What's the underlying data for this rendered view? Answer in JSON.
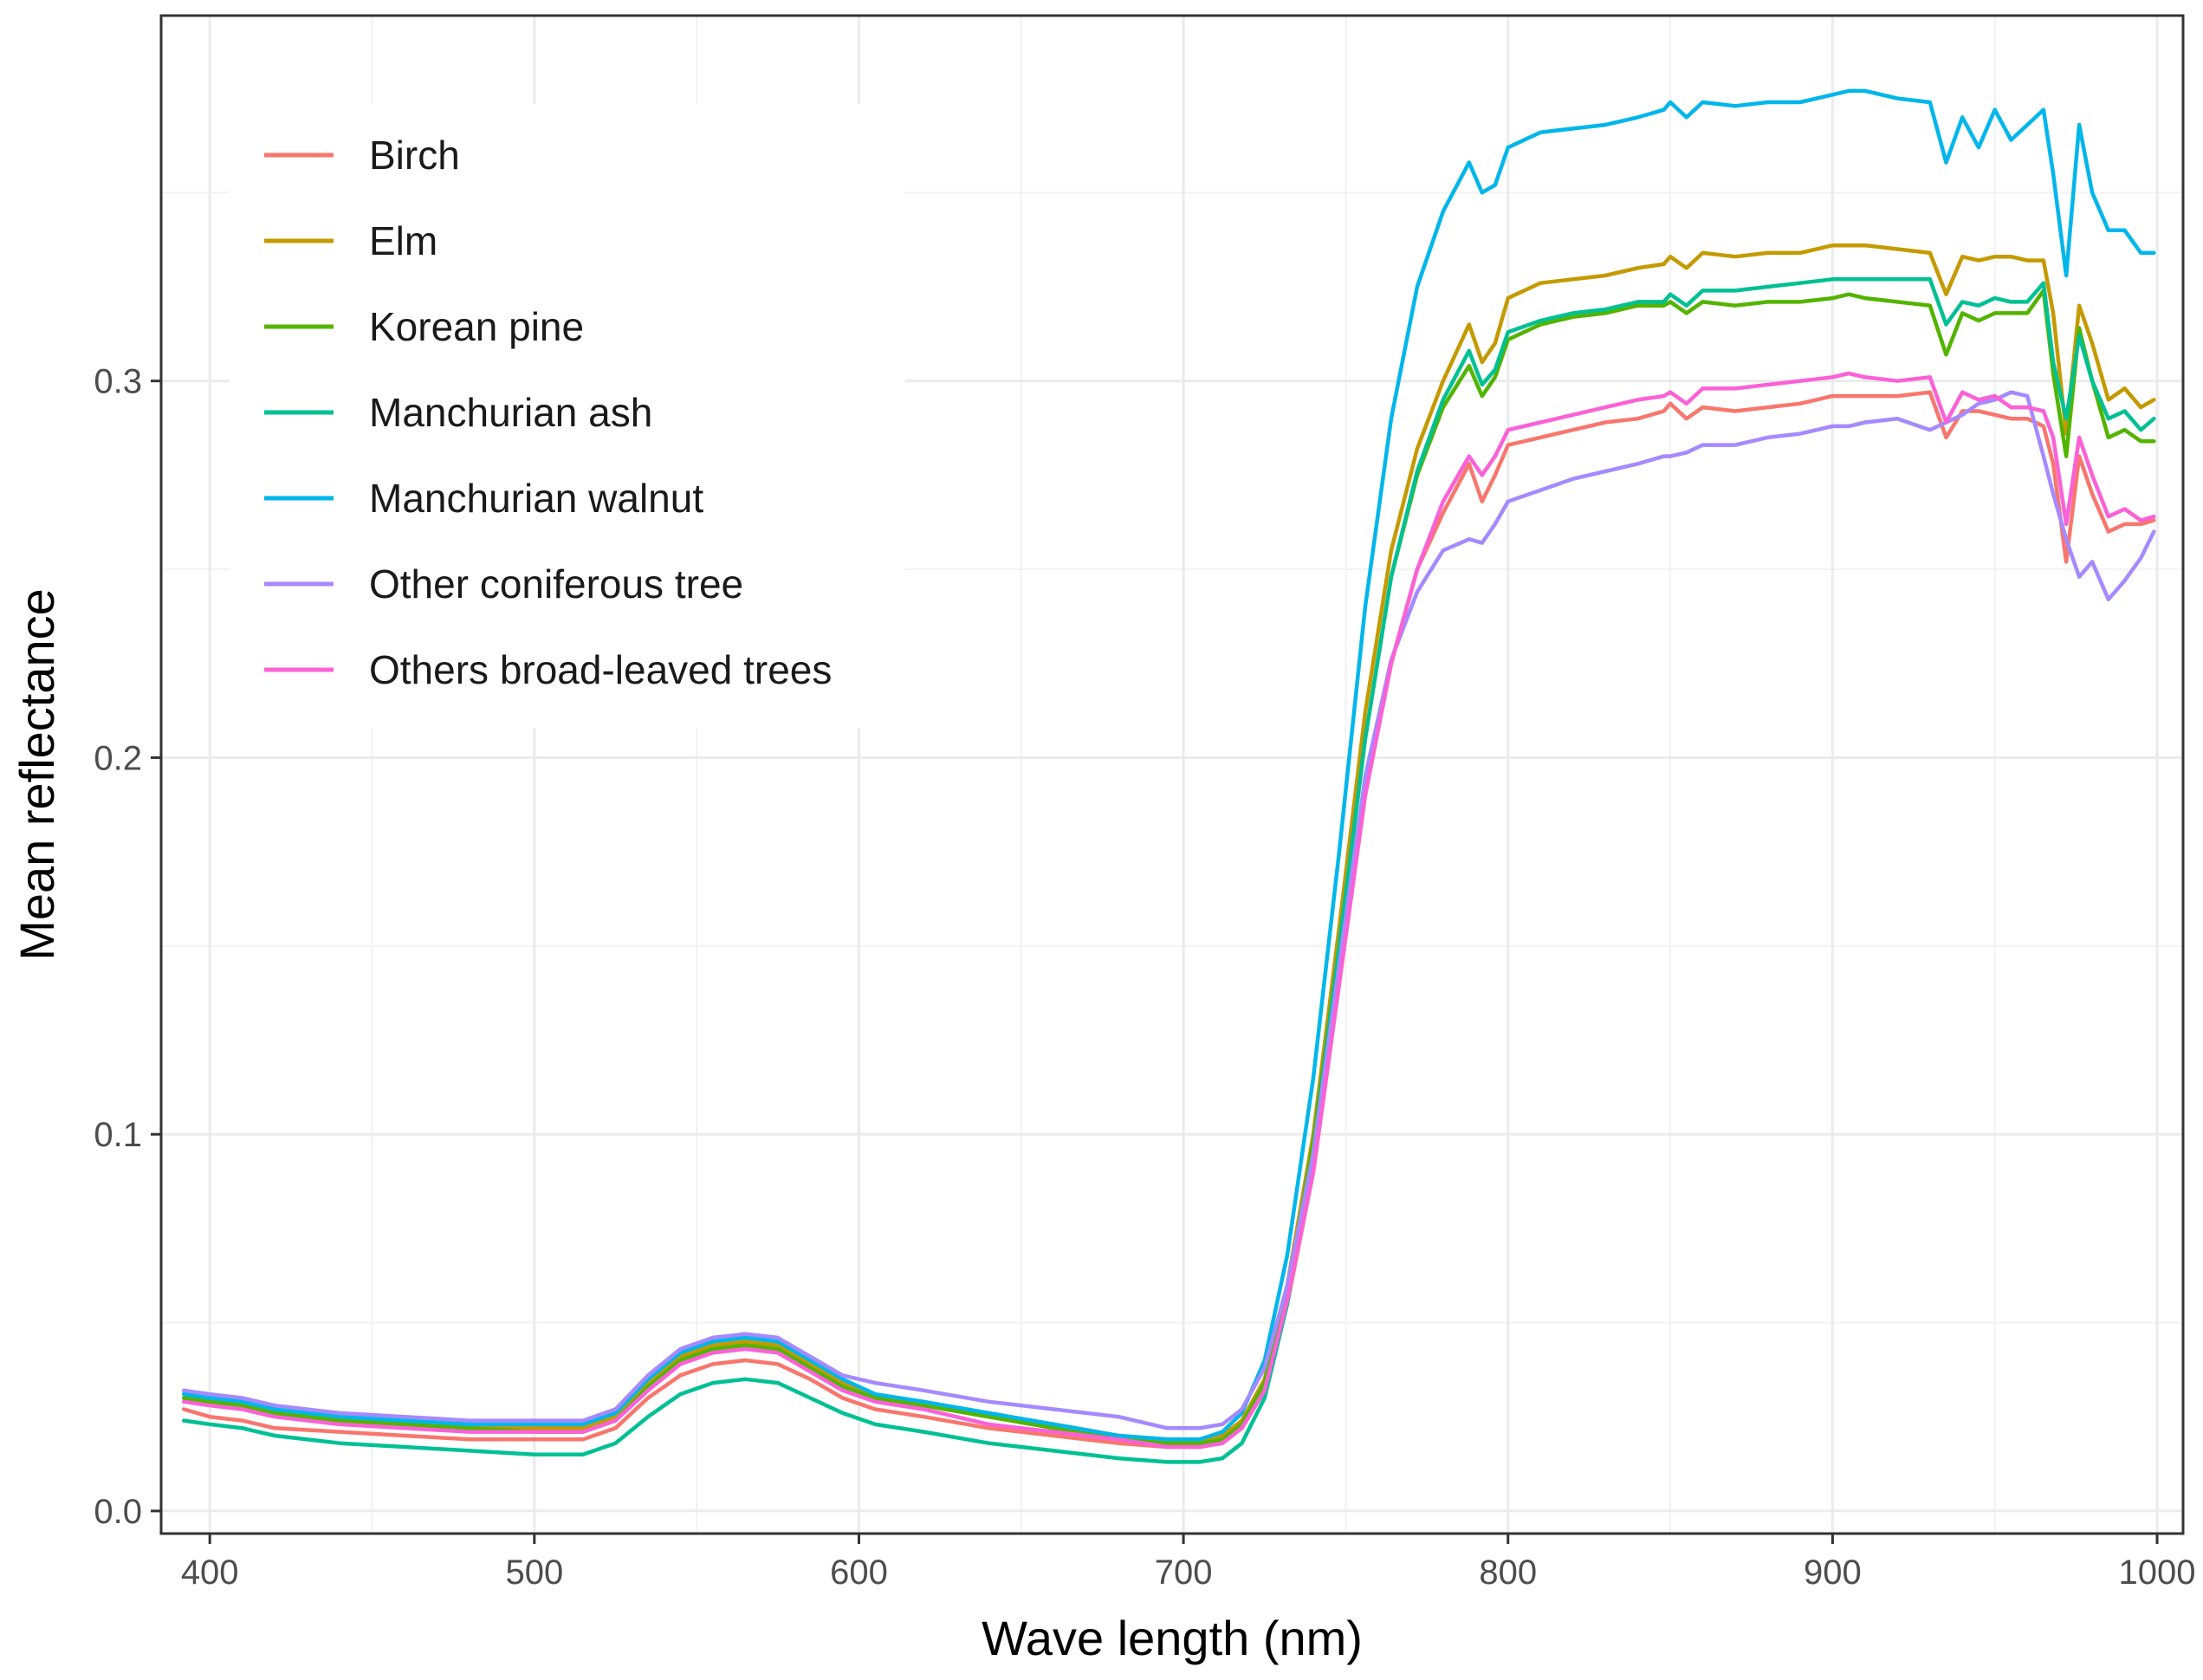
{
  "chart_data": {
    "type": "line",
    "title": "",
    "xlabel": "Wave length (nm)",
    "ylabel": "Mean reflectance",
    "xlim": [
      385,
      1008
    ],
    "ylim": [
      -0.006,
      0.397
    ],
    "xticks": [
      400,
      500,
      600,
      700,
      800,
      900,
      1000
    ],
    "xtick_labels": [
      "400",
      "500",
      "600",
      "700",
      "800",
      "900",
      "1000"
    ],
    "yticks": [
      0.0,
      0.1,
      0.2,
      0.3
    ],
    "ytick_labels": [
      "0.0",
      "0.1",
      "0.2",
      "0.3"
    ],
    "grid": true,
    "legend_position": "top-left",
    "x": [
      392,
      400,
      410,
      420,
      440,
      460,
      480,
      500,
      515,
      525,
      535,
      545,
      555,
      565,
      575,
      585,
      595,
      605,
      620,
      640,
      660,
      680,
      695,
      705,
      712,
      718,
      725,
      732,
      740,
      748,
      756,
      764,
      772,
      780,
      788,
      792,
      796,
      800,
      810,
      820,
      830,
      840,
      848,
      850,
      855,
      860,
      870,
      880,
      890,
      900,
      905,
      910,
      920,
      930,
      935,
      940,
      945,
      950,
      955,
      960,
      965,
      968,
      972,
      976,
      980,
      985,
      990,
      995,
      999
    ],
    "series": [
      {
        "name": "Birch",
        "color": "#F8766D",
        "values": [
          0.027,
          0.025,
          0.024,
          0.022,
          0.021,
          0.02,
          0.019,
          0.019,
          0.019,
          0.022,
          0.03,
          0.036,
          0.039,
          0.04,
          0.039,
          0.035,
          0.03,
          0.027,
          0.025,
          0.022,
          0.02,
          0.018,
          0.017,
          0.017,
          0.018,
          0.022,
          0.032,
          0.055,
          0.09,
          0.14,
          0.19,
          0.225,
          0.25,
          0.265,
          0.278,
          0.268,
          0.275,
          0.283,
          0.285,
          0.287,
          0.289,
          0.29,
          0.292,
          0.294,
          0.29,
          0.293,
          0.292,
          0.293,
          0.294,
          0.296,
          0.296,
          0.296,
          0.296,
          0.297,
          0.285,
          0.292,
          0.292,
          0.291,
          0.29,
          0.29,
          0.288,
          0.278,
          0.252,
          0.28,
          0.27,
          0.26,
          0.262,
          0.262,
          0.263
        ]
      },
      {
        "name": "Elm",
        "color": "#C49A00",
        "values": [
          0.03,
          0.029,
          0.028,
          0.026,
          0.024,
          0.023,
          0.022,
          0.022,
          0.022,
          0.025,
          0.034,
          0.041,
          0.044,
          0.045,
          0.044,
          0.039,
          0.034,
          0.03,
          0.028,
          0.025,
          0.023,
          0.02,
          0.019,
          0.019,
          0.02,
          0.024,
          0.035,
          0.06,
          0.1,
          0.155,
          0.212,
          0.255,
          0.282,
          0.3,
          0.315,
          0.305,
          0.31,
          0.322,
          0.326,
          0.327,
          0.328,
          0.33,
          0.331,
          0.333,
          0.33,
          0.334,
          0.333,
          0.334,
          0.334,
          0.336,
          0.336,
          0.336,
          0.335,
          0.334,
          0.323,
          0.333,
          0.332,
          0.333,
          0.333,
          0.332,
          0.332,
          0.318,
          0.286,
          0.32,
          0.31,
          0.295,
          0.298,
          0.293,
          0.295
        ]
      },
      {
        "name": "Korean pine",
        "color": "#53B400",
        "values": [
          0.03,
          0.029,
          0.028,
          0.026,
          0.024,
          0.023,
          0.022,
          0.021,
          0.021,
          0.024,
          0.033,
          0.04,
          0.043,
          0.044,
          0.043,
          0.038,
          0.033,
          0.03,
          0.028,
          0.025,
          0.022,
          0.019,
          0.018,
          0.018,
          0.019,
          0.023,
          0.034,
          0.058,
          0.098,
          0.15,
          0.205,
          0.248,
          0.275,
          0.293,
          0.304,
          0.296,
          0.301,
          0.311,
          0.315,
          0.317,
          0.318,
          0.32,
          0.32,
          0.321,
          0.318,
          0.321,
          0.32,
          0.321,
          0.321,
          0.322,
          0.323,
          0.322,
          0.321,
          0.32,
          0.307,
          0.318,
          0.316,
          0.318,
          0.318,
          0.318,
          0.324,
          0.302,
          0.28,
          0.314,
          0.3,
          0.285,
          0.287,
          0.284,
          0.284
        ]
      },
      {
        "name": "Manchurian ash",
        "color": "#00C094",
        "values": [
          0.024,
          0.023,
          0.022,
          0.02,
          0.018,
          0.017,
          0.016,
          0.015,
          0.015,
          0.018,
          0.025,
          0.031,
          0.034,
          0.035,
          0.034,
          0.03,
          0.026,
          0.023,
          0.021,
          0.018,
          0.016,
          0.014,
          0.013,
          0.013,
          0.014,
          0.018,
          0.03,
          0.055,
          0.095,
          0.15,
          0.205,
          0.248,
          0.276,
          0.295,
          0.308,
          0.299,
          0.303,
          0.313,
          0.316,
          0.318,
          0.319,
          0.321,
          0.321,
          0.323,
          0.32,
          0.324,
          0.324,
          0.325,
          0.326,
          0.327,
          0.327,
          0.327,
          0.327,
          0.327,
          0.315,
          0.321,
          0.32,
          0.322,
          0.321,
          0.321,
          0.326,
          0.305,
          0.29,
          0.312,
          0.3,
          0.29,
          0.292,
          0.287,
          0.29
        ]
      },
      {
        "name": "Manchurian walnut",
        "color": "#00B6EB",
        "values": [
          0.031,
          0.03,
          0.029,
          0.027,
          0.025,
          0.024,
          0.023,
          0.023,
          0.023,
          0.026,
          0.035,
          0.042,
          0.045,
          0.046,
          0.045,
          0.04,
          0.035,
          0.031,
          0.029,
          0.026,
          0.023,
          0.02,
          0.019,
          0.019,
          0.021,
          0.026,
          0.04,
          0.068,
          0.115,
          0.175,
          0.24,
          0.29,
          0.325,
          0.345,
          0.358,
          0.35,
          0.352,
          0.362,
          0.366,
          0.367,
          0.368,
          0.37,
          0.372,
          0.374,
          0.37,
          0.374,
          0.373,
          0.374,
          0.374,
          0.376,
          0.377,
          0.377,
          0.375,
          0.374,
          0.358,
          0.37,
          0.362,
          0.372,
          0.364,
          0.368,
          0.372,
          0.355,
          0.328,
          0.368,
          0.35,
          0.34,
          0.34,
          0.334,
          0.334
        ]
      },
      {
        "name": "Other coniferous tree",
        "color": "#A58AFF",
        "values": [
          0.032,
          0.031,
          0.03,
          0.028,
          0.026,
          0.025,
          0.024,
          0.024,
          0.024,
          0.027,
          0.036,
          0.043,
          0.046,
          0.047,
          0.046,
          0.041,
          0.036,
          0.034,
          0.032,
          0.029,
          0.027,
          0.025,
          0.022,
          0.022,
          0.023,
          0.027,
          0.038,
          0.06,
          0.095,
          0.145,
          0.195,
          0.226,
          0.244,
          0.255,
          0.258,
          0.257,
          0.262,
          0.268,
          0.271,
          0.274,
          0.276,
          0.278,
          0.28,
          0.28,
          0.281,
          0.283,
          0.283,
          0.285,
          0.286,
          0.288,
          0.288,
          0.289,
          0.29,
          0.287,
          0.289,
          0.291,
          0.294,
          0.295,
          0.297,
          0.296,
          0.28,
          0.27,
          0.258,
          0.248,
          0.252,
          0.242,
          0.247,
          0.253,
          0.26
        ]
      },
      {
        "name": "Others broad-leaved trees",
        "color": "#FB61D7",
        "values": [
          0.029,
          0.028,
          0.027,
          0.025,
          0.023,
          0.022,
          0.021,
          0.021,
          0.021,
          0.024,
          0.032,
          0.039,
          0.042,
          0.043,
          0.042,
          0.037,
          0.032,
          0.029,
          0.027,
          0.023,
          0.021,
          0.019,
          0.017,
          0.017,
          0.018,
          0.022,
          0.032,
          0.056,
          0.09,
          0.14,
          0.19,
          0.225,
          0.25,
          0.268,
          0.28,
          0.275,
          0.28,
          0.287,
          0.289,
          0.291,
          0.293,
          0.295,
          0.296,
          0.297,
          0.294,
          0.298,
          0.298,
          0.299,
          0.3,
          0.301,
          0.302,
          0.301,
          0.3,
          0.301,
          0.289,
          0.297,
          0.295,
          0.296,
          0.293,
          0.293,
          0.292,
          0.285,
          0.262,
          0.285,
          0.275,
          0.264,
          0.266,
          0.263,
          0.264
        ]
      }
    ]
  }
}
